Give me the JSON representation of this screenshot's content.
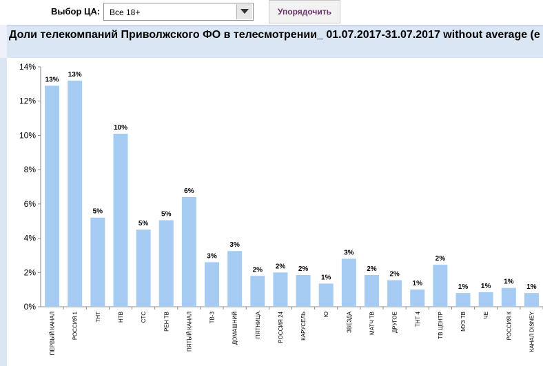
{
  "toolbar": {
    "ta_label": "Выбор ЦА:",
    "select_value": "Все 18+",
    "sort_label": "Упорядочить"
  },
  "title": "Доли телекомпаний Приволжского ФО в телесмотрении_ 01.07.2017-31.07.2017 without average (e",
  "colors": {
    "bar": "#a6ccf4",
    "title_bg": "#dbe6f4"
  },
  "icons": {
    "select_arrow": "chevron-down-icon"
  },
  "chart_data": {
    "type": "bar",
    "title": "Доли телекомпаний Приволжского ФО в телесмотрении_ 01.07.2017-31.07.2017 without average (e",
    "xlabel": "",
    "ylabel": "",
    "ylim": [
      0,
      14
    ],
    "yticks": [
      "0%",
      "2%",
      "4%",
      "6%",
      "8%",
      "10%",
      "12%",
      "14%"
    ],
    "grid": false,
    "categories": [
      "ПЕРВЫЙ КАНАЛ",
      "РОССИЯ 1",
      "ТНТ",
      "НТВ",
      "СТС",
      "РЕН ТВ",
      "ПЯТЫЙ КАНАЛ",
      "ТВ-3",
      "ДОМАШНИЙ",
      "ПЯТНИЦА",
      "РОССИЯ 24",
      "КАРУСЕЛЬ",
      "Ю",
      "ЗВЕЗДА",
      "МАТЧ ТВ",
      "ДРУГОЕ",
      "ТНТ 4",
      "ТВ ЦЕНТР",
      "МУЗ ТВ",
      "ЧЕ",
      "РОССИЯ К",
      "КАНАЛ DISNEY"
    ],
    "values": [
      12.9,
      13.2,
      5.2,
      10.1,
      4.5,
      5.05,
      6.4,
      2.6,
      3.25,
      1.8,
      2.0,
      1.85,
      1.35,
      2.8,
      1.85,
      1.55,
      1.0,
      2.45,
      0.8,
      0.85,
      1.1,
      0.8
    ],
    "data_labels": [
      "13%",
      "13%",
      "5%",
      "10%",
      "5%",
      "5%",
      "6%",
      "3%",
      "3%",
      "2%",
      "2%",
      "2%",
      "1%",
      "3%",
      "2%",
      "2%",
      "1%",
      "2%",
      "1%",
      "1%",
      "1%",
      "1%"
    ]
  }
}
